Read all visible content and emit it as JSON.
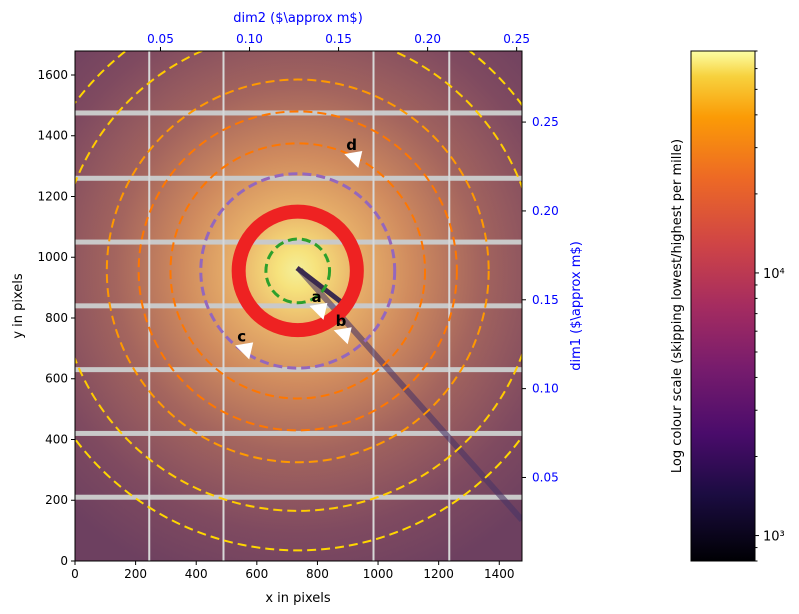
{
  "chart_data": {
    "type": "heatmap",
    "xlabel": "x in pixels",
    "ylabel": "y in pixels",
    "x_ticks": [
      0,
      200,
      400,
      600,
      800,
      1000,
      1200,
      1400
    ],
    "y_ticks": [
      0,
      200,
      400,
      600,
      800,
      1000,
      1200,
      1400,
      1600
    ],
    "xlim": [
      0,
      1475
    ],
    "ylim": [
      0,
      1679
    ],
    "top_axis": {
      "label": "dim2 ($\\approx m$)",
      "ticks": [
        0.05,
        0.1,
        0.15,
        0.2,
        0.25
      ],
      "tick_labels": [
        "0.05",
        "0.10",
        "0.15",
        "0.20",
        "0.25"
      ],
      "range": [
        0.002,
        0.253
      ],
      "color": "#0000ff"
    },
    "right_axis": {
      "label": "dim1 ($\\approx m$)",
      "ticks": [
        0.05,
        0.1,
        0.15,
        0.2,
        0.25
      ],
      "tick_labels": [
        "0.05",
        "0.10",
        "0.15",
        "0.20",
        "0.25"
      ],
      "range": [
        0.003,
        0.29
      ],
      "color": "#0000ff"
    },
    "beam_center": {
      "x": 735,
      "y": 955
    },
    "gap_rows_y": [
      210,
      420,
      630,
      840,
      1050,
      1260,
      1475
    ],
    "gap_cols_x": [
      245,
      490,
      985,
      1235
    ],
    "rings": [
      {
        "radius": 105,
        "color": "#2ca02c",
        "style": "dashed",
        "width": 3
      },
      {
        "radius": 195,
        "color": "#ee2222",
        "style": "solid",
        "width": 14
      },
      {
        "radius": 320,
        "color": "#9467bd",
        "style": "dashed",
        "width": 3
      },
      {
        "radius": 420,
        "color": "#ff7700",
        "style": "dashed",
        "width": 2
      },
      {
        "radius": 525,
        "color": "#ff7700",
        "style": "dashed",
        "width": 2
      },
      {
        "radius": 630,
        "color": "#ff9900",
        "style": "dashed",
        "width": 2
      },
      {
        "radius": 790,
        "color": "#ffcc00",
        "style": "dashed",
        "width": 2
      },
      {
        "radius": 920,
        "color": "#ffd700",
        "style": "dashed",
        "width": 2
      }
    ],
    "markers": [
      {
        "label": "a",
        "x": 800,
        "y": 820
      },
      {
        "label": "b",
        "x": 880,
        "y": 740
      },
      {
        "label": "c",
        "x": 555,
        "y": 690
      },
      {
        "label": "d",
        "x": 915,
        "y": 1320
      }
    ],
    "colorbar": {
      "label": "Log colour scale (skipping lowest/highest per mille)",
      "scale": "log",
      "range": [
        800,
        70000
      ],
      "major_ticks": [
        1000,
        10000
      ],
      "major_tick_labels": [
        "10³",
        "10⁴"
      ],
      "colormap": "inferno"
    }
  }
}
